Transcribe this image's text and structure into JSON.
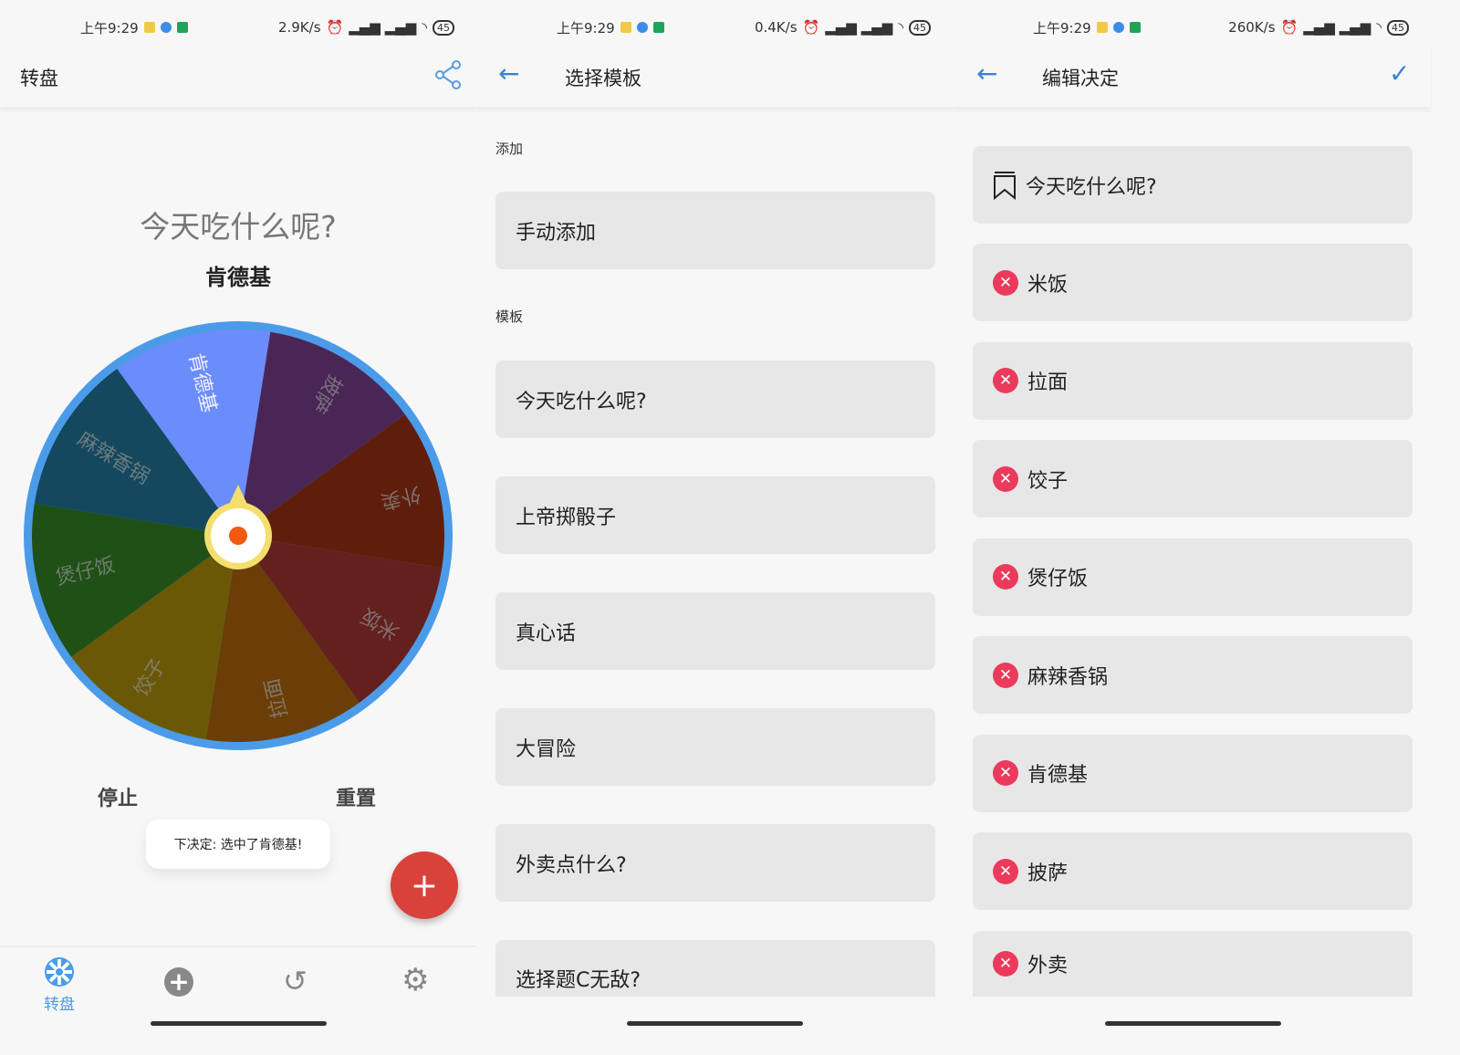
{
  "status_bars": [
    {
      "time": "上午9:29",
      "speed": "2.9K/s",
      "battery": "45"
    },
    {
      "time": "上午9:29",
      "speed": "0.4K/s",
      "battery": "45"
    },
    {
      "time": "上午9:29",
      "speed": "260K/s",
      "battery": "45"
    }
  ],
  "wheel_screen": {
    "title": "转盘",
    "question": "今天吃什么呢?",
    "result": "肯德基",
    "segments": [
      {
        "label": "肯德基",
        "color": "#6b8cfb",
        "selected": true
      },
      {
        "label": "披萨",
        "color": "#4a2656"
      },
      {
        "label": "外卖",
        "color": "#5f1e0c"
      },
      {
        "label": "米饭",
        "color": "#64201c"
      },
      {
        "label": "拉面",
        "color": "#6a3e06"
      },
      {
        "label": "饺子",
        "color": "#6a5806"
      },
      {
        "label": "煲仔饭",
        "color": "#1f5016"
      },
      {
        "label": "麻辣香锅",
        "color": "#13485e"
      }
    ],
    "rim_color": "#4b9be8",
    "stop_label": "停止",
    "reset_label": "重置",
    "toast": "下决定: 选中了肯德基!",
    "fab_color": "#d9423a",
    "nav": [
      {
        "label": "转盘",
        "icon": "wheel-icon",
        "active": true
      },
      {
        "icon": "add-circle-icon"
      },
      {
        "icon": "history-icon"
      },
      {
        "icon": "settings-icon"
      }
    ]
  },
  "template_screen": {
    "title": "选择模板",
    "add_section": "添加",
    "manual_add": "手动添加",
    "template_section": "模板",
    "templates": [
      "今天吃什么呢?",
      "上帝掷骰子",
      "真心话",
      "大冒险",
      "外卖点什么?",
      "选择题C无敌?"
    ]
  },
  "edit_screen": {
    "title": "编辑决定",
    "decision_title": "今天吃什么呢?",
    "options": [
      "米饭",
      "拉面",
      "饺子",
      "煲仔饭",
      "麻辣香锅",
      "肯德基",
      "披萨",
      "外卖"
    ]
  }
}
